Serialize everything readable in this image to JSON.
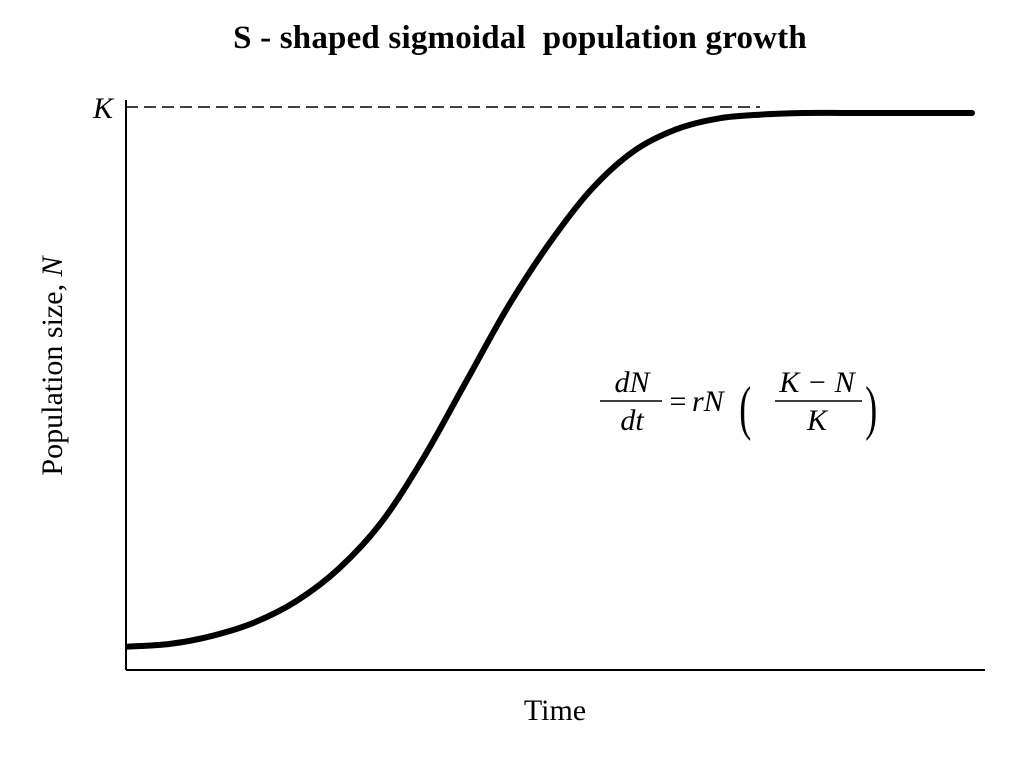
{
  "chart_data": {
    "type": "line",
    "title": "S - shaped sigmoidal  population growth",
    "xlabel": "Time",
    "ylabel": "Population size, N",
    "y_tick_labels": [
      "K"
    ],
    "x_tick_labels": [],
    "grid": false,
    "legend": "none",
    "annotation": {
      "lhs_numerator": "dN",
      "lhs_denominator": "dt",
      "equals": "=",
      "rhs_factor": "rN",
      "paren_numerator": "K − N",
      "paren_denominator": "K"
    },
    "series": [
      {
        "x": [
          0.0,
          0.05,
          0.1,
          0.15,
          0.2,
          0.25,
          0.3,
          0.35,
          0.4,
          0.45,
          0.5,
          0.55,
          0.6,
          0.65,
          0.7,
          0.75,
          0.8,
          0.85,
          0.9,
          0.95,
          1.0
        ],
        "values": [
          0.01,
          0.015,
          0.03,
          0.055,
          0.095,
          0.155,
          0.24,
          0.36,
          0.5,
          0.64,
          0.76,
          0.86,
          0.93,
          0.97,
          0.99,
          0.997,
          1.0,
          1.0,
          1.0,
          1.0,
          1.0
        ]
      }
    ],
    "ylim": [
      0,
      1.0
    ],
    "xlim": [
      0,
      1.0
    ],
    "carrying_capacity": 1.0
  }
}
